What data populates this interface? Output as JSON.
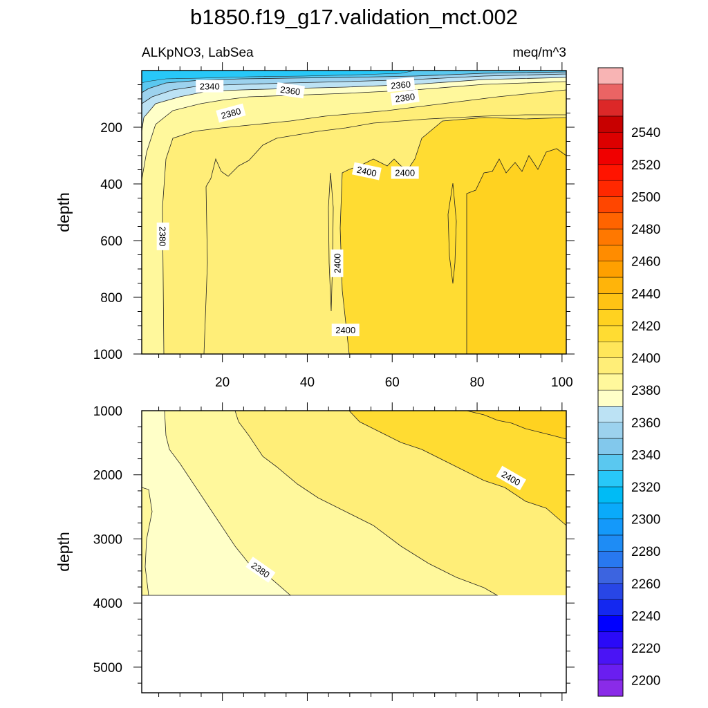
{
  "chart_data": {
    "type": "contour",
    "title": "b1850.f19_g17.validation_mct.002",
    "left_label": "ALKpNO3, LabSea",
    "right_label": "meq/m^3",
    "x_ticks": [
      20,
      40,
      60,
      80,
      100
    ],
    "upper_panel": {
      "ylabel": "depth",
      "ylim": [
        0,
        1000
      ],
      "y_ticks": [
        200,
        400,
        600,
        800,
        1000
      ],
      "contour_labels": [
        {
          "text": "2340",
          "x": 17,
          "y": 55,
          "rot": 0
        },
        {
          "text": "2360",
          "x": 36,
          "y": 70,
          "rot": 8
        },
        {
          "text": "2360",
          "x": 62,
          "y": 50,
          "rot": -5
        },
        {
          "text": "2380",
          "x": 63,
          "y": 95,
          "rot": -8
        },
        {
          "text": "2380",
          "x": 22,
          "y": 150,
          "rot": -15
        },
        {
          "text": "2380",
          "x": 6,
          "y": 585,
          "rot": 90
        },
        {
          "text": "2400",
          "x": 54,
          "y": 355,
          "rot": 12
        },
        {
          "text": "2400",
          "x": 63,
          "y": 360,
          "rot": 0
        },
        {
          "text": "2400",
          "x": 47,
          "y": 680,
          "rot": -90
        },
        {
          "text": "2400",
          "x": 49,
          "y": 915,
          "rot": 0
        }
      ]
    },
    "lower_panel": {
      "ylabel": "depth",
      "ylim": [
        1000,
        5400
      ],
      "y_ticks": [
        1000,
        2000,
        3000,
        4000,
        5000
      ],
      "bottom_depth": 3870,
      "contour_labels": [
        {
          "text": "2400",
          "x": 88,
          "y": 2050,
          "rot": 30
        },
        {
          "text": "2380",
          "x": 29,
          "y": 3480,
          "rot": 35
        }
      ]
    },
    "colorbar": {
      "labels": [
        2200,
        2220,
        2240,
        2260,
        2280,
        2300,
        2320,
        2340,
        2360,
        2380,
        2400,
        2420,
        2440,
        2460,
        2480,
        2500,
        2520,
        2540
      ],
      "colors": [
        "#8a2be8",
        "#6a1ef0",
        "#4a14f5",
        "#2a0af8",
        "#0000ff",
        "#1428f0",
        "#2846e6",
        "#3c64e0",
        "#2878f0",
        "#1e8cf5",
        "#1499fa",
        "#0aaafa",
        "#00bbf5",
        "#28c8f8",
        "#5ac8f0",
        "#82c8ec",
        "#9cd2ee",
        "#bce2f4",
        "#ffffc8",
        "#fff89c",
        "#ffee78",
        "#ffe65a",
        "#ffdc32",
        "#ffd220",
        "#ffc314",
        "#ffb40a",
        "#ffa000",
        "#ff8c00",
        "#ff7800",
        "#ff6400",
        "#ff4600",
        "#ff2800",
        "#ff1400",
        "#f00000",
        "#dc0000",
        "#c80000",
        "#dc2828",
        "#ea6464",
        "#f8b4b4"
      ]
    }
  }
}
